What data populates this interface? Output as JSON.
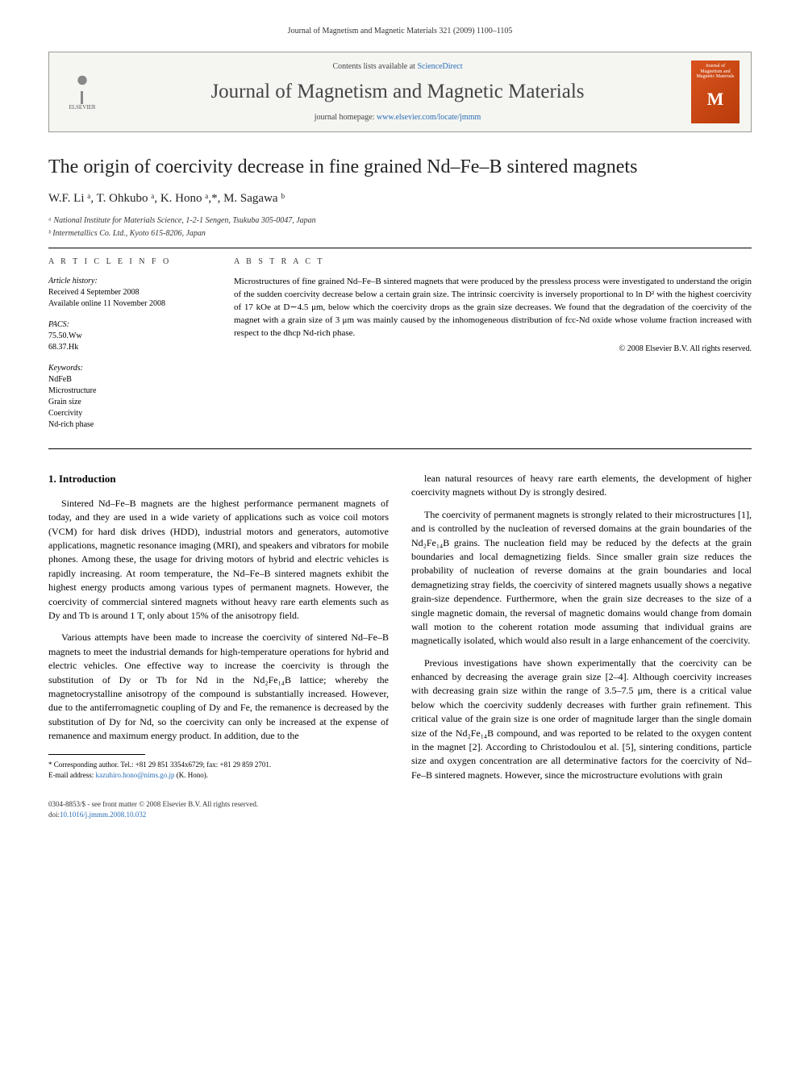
{
  "header_line": "Journal of Magnetism and Magnetic Materials 321 (2009) 1100–1105",
  "publisher": {
    "elsevier": "ELSEVIER",
    "contents_prefix": "Contents lists available at ",
    "contents_link": "ScienceDirect",
    "journal_name": "Journal of Magnetism and Magnetic Materials",
    "homepage_prefix": "journal homepage: ",
    "homepage_link": "www.elsevier.com/locate/jmmm",
    "cover_top": "Journal of Magnetism and Magnetic Materials",
    "cover_M": "M"
  },
  "title": "The origin of coercivity decrease in fine grained Nd–Fe–B sintered magnets",
  "authors_html": "W.F. Li ᵃ, T. Ohkubo ᵃ, K. Hono ᵃ,*, M. Sagawa ᵇ",
  "affiliations": {
    "a": "ᵃ National Institute for Materials Science, 1-2-1 Sengen, Tsukuba 305-0047, Japan",
    "b": "ᵇ Intermetallics Co. Ltd., Kyoto 615-8206, Japan"
  },
  "article_info": {
    "label": "A R T I C L E   I N F O",
    "history_label": "Article history:",
    "received": "Received 4 September 2008",
    "online": "Available online 11 November 2008",
    "pacs_label": "PACS:",
    "pacs1": "75.50.Ww",
    "pacs2": "68.37.Hk",
    "keywords_label": "Keywords:",
    "k1": "NdFeB",
    "k2": "Microstructure",
    "k3": "Grain size",
    "k4": "Coercivity",
    "k5": "Nd-rich phase"
  },
  "abstract": {
    "label": "A B S T R A C T",
    "text": "Microstructures of fine grained Nd–Fe–B sintered magnets that were produced by the pressless process were investigated to understand the origin of the sudden coercivity decrease below a certain grain size. The intrinsic coercivity is inversely proportional to ln D² with the highest coercivity of 17 kOe at D∼4.5 μm, below which the coercivity drops as the grain size decreases. We found that the degradation of the coercivity of the magnet with a grain size of 3 μm was mainly caused by the inhomogeneous distribution of fcc-Nd oxide whose volume fraction increased with respect to the dhcp Nd-rich phase.",
    "copyright": "© 2008 Elsevier B.V. All rights reserved."
  },
  "body": {
    "h1": "1. Introduction",
    "p1": "Sintered Nd–Fe–B magnets are the highest performance permanent magnets of today, and they are used in a wide variety of applications such as voice coil motors (VCM) for hard disk drives (HDD), industrial motors and generators, automotive applications, magnetic resonance imaging (MRI), and speakers and vibrators for mobile phones. Among these, the usage for driving motors of hybrid and electric vehicles is rapidly increasing. At room temperature, the Nd–Fe–B sintered magnets exhibit the highest energy products among various types of permanent magnets. However, the coercivity of commercial sintered magnets without heavy rare earth elements such as Dy and Tb is around 1 T, only about 15% of the anisotropy field.",
    "p2": "Various attempts have been made to increase the coercivity of sintered Nd–Fe–B magnets to meet the industrial demands for high-temperature operations for hybrid and electric vehicles. One effective way to increase the coercivity is through the substitution of Dy or Tb for Nd in the Nd₂Fe₁₄B lattice; whereby the magnetocrystalline anisotropy of the compound is substantially increased. However, due to the antiferromagnetic coupling of Dy and Fe, the remanence is decreased by the substitution of Dy for Nd, so the coercivity can only be increased at the expense of remanence and maximum energy product. In addition, due to the",
    "p3": "lean natural resources of heavy rare earth elements, the development of higher coercivity magnets without Dy is strongly desired.",
    "p4": "The coercivity of permanent magnets is strongly related to their microstructures [1], and is controlled by the nucleation of reversed domains at the grain boundaries of the Nd₂Fe₁₄B grains. The nucleation field may be reduced by the defects at the grain boundaries and local demagnetizing fields. Since smaller grain size reduces the probability of nucleation of reverse domains at the grain boundaries and local demagnetizing stray fields, the coercivity of sintered magnets usually shows a negative grain-size dependence. Furthermore, when the grain size decreases to the size of a single magnetic domain, the reversal of magnetic domains would change from domain wall motion to the coherent rotation mode assuming that individual grains are magnetically isolated, which would also result in a large enhancement of the coercivity.",
    "p5": "Previous investigations have shown experimentally that the coercivity can be enhanced by decreasing the average grain size [2–4]. Although coercivity increases with decreasing grain size within the range of 3.5–7.5 μm, there is a critical value below which the coercivity suddenly decreases with further grain refinement. This critical value of the grain size is one order of magnitude larger than the single domain size of the Nd₂Fe₁₄B compound, and was reported to be related to the oxygen content in the magnet [2]. According to Christodoulou et al. [5], sintering conditions, particle size and oxygen concentration are all determinative factors for the coercivity of Nd–Fe–B sintered magnets. However, since the microstructure evolutions with grain"
  },
  "footnote": {
    "corr": "* Corresponding author. Tel.: +81 29 851 3354x6729; fax: +81 29 859 2701.",
    "email_label": "E-mail address: ",
    "email": "kazuhiro.hono@nims.go.jp",
    "email_suffix": " (K. Hono)."
  },
  "bottom": {
    "issn": "0304-8853/$ - see front matter © 2008 Elsevier B.V. All rights reserved.",
    "doi_label": "doi:",
    "doi": "10.1016/j.jmmm.2008.10.032"
  }
}
